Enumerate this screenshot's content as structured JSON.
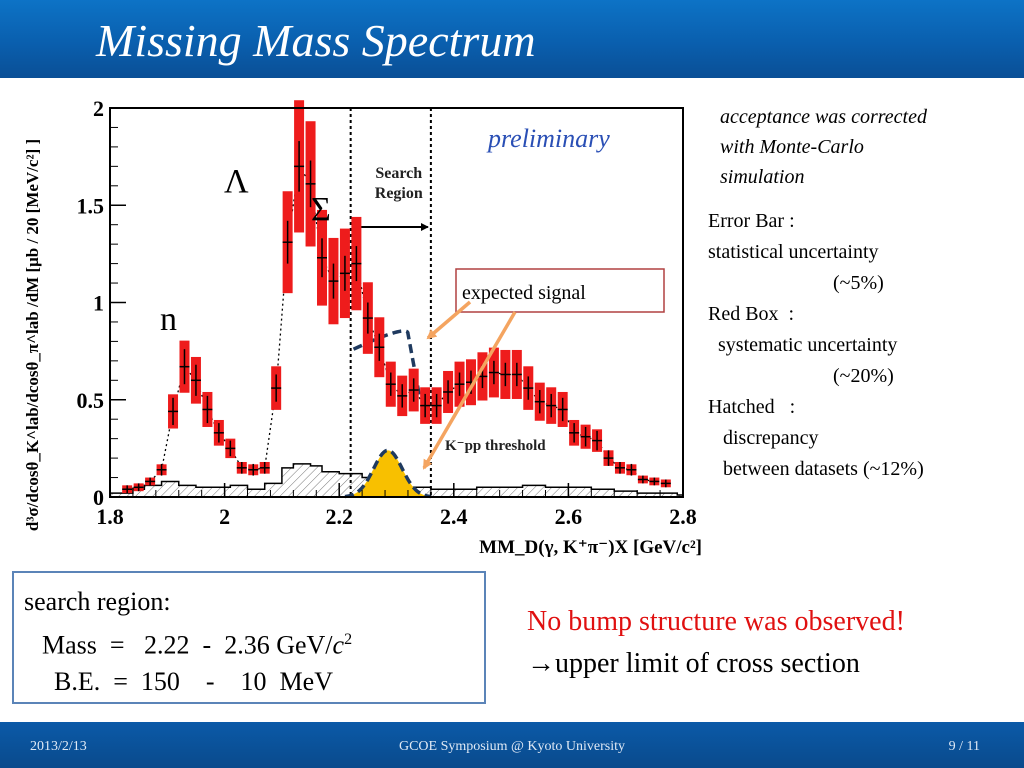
{
  "slide": {
    "title": "Missing Mass Spectrum",
    "footer": {
      "date": "2013/2/13",
      "event": "GCOE Symposium @ Kyoto University",
      "page": "9 / 11"
    }
  },
  "annotations": {
    "acceptance": "acceptance was corrected\nwith Monte-Carlo\nsimulation",
    "error_notes": "Error Bar :\nstatistical uncertainty\n                         (~5%)\nRed Box  :\n  systematic uncertainty\n                         (~20%)\nHatched   :\n   discrepancy\n   between datasets (~12%)"
  },
  "search_box": {
    "line1": "search region:",
    "mass_label": "Mass  =   2.22  -  2.36 GeV/",
    "mass_unit_c": "c",
    "mass_unit_exp": "2",
    "be_line": "B.E.  =  150    -    10  MeV"
  },
  "conclusion": {
    "red": "No bump structure was observed!",
    "arrow": "→",
    "text": "upper limit of cross section"
  },
  "chart_data": {
    "type": "scatter",
    "xlim": [
      1.8,
      2.8
    ],
    "ylim": [
      0,
      2
    ],
    "x_ticks": [
      "1.8",
      "2",
      "2.2",
      "2.4",
      "2.6",
      "2.8"
    ],
    "y_ticks": [
      "0",
      "0.5",
      "1",
      "1.5",
      "2"
    ],
    "xlabel": "MM_D(γ, K⁺π⁻)X [GeV/c²]",
    "ylabel": "d³σ/dcosθ_K^lab/dcosθ_π^lab /dM [μb / 20 [MeV/c²] ]",
    "labels": {
      "preliminary": "preliminary",
      "lambda": "Λ",
      "sigma": "Σ",
      "n": "n",
      "search": "Search",
      "region": "Region",
      "threshold": "K⁻pp threshold",
      "expected_signal": "expected signal"
    },
    "search_region": [
      2.22,
      2.36
    ],
    "colors": {
      "syst_box": "#ee1c1c",
      "signal_fill": "#f8c000",
      "signal_outline": "#1f3a5f",
      "arrow": "#f4a460"
    },
    "points": [
      [
        1.83,
        0.04,
        0.02
      ],
      [
        1.85,
        0.05,
        0.02
      ],
      [
        1.87,
        0.08,
        0.02
      ],
      [
        1.89,
        0.14,
        0.03
      ],
      [
        1.91,
        0.44,
        0.07
      ],
      [
        1.93,
        0.67,
        0.09
      ],
      [
        1.95,
        0.6,
        0.08
      ],
      [
        1.97,
        0.45,
        0.07
      ],
      [
        1.99,
        0.33,
        0.05
      ],
      [
        2.01,
        0.25,
        0.04
      ],
      [
        2.03,
        0.15,
        0.03
      ],
      [
        2.05,
        0.14,
        0.03
      ],
      [
        2.07,
        0.15,
        0.03
      ],
      [
        2.09,
        0.56,
        0.07
      ],
      [
        2.11,
        1.31,
        0.11
      ],
      [
        2.13,
        1.7,
        0.13
      ],
      [
        2.15,
        1.61,
        0.12
      ],
      [
        2.17,
        1.23,
        0.1
      ],
      [
        2.19,
        1.11,
        0.09
      ],
      [
        2.21,
        1.15,
        0.09
      ],
      [
        2.23,
        1.2,
        0.09
      ],
      [
        2.25,
        0.92,
        0.08
      ],
      [
        2.27,
        0.77,
        0.07
      ],
      [
        2.29,
        0.58,
        0.06
      ],
      [
        2.31,
        0.52,
        0.06
      ],
      [
        2.33,
        0.55,
        0.06
      ],
      [
        2.35,
        0.47,
        0.06
      ],
      [
        2.37,
        0.47,
        0.06
      ],
      [
        2.39,
        0.54,
        0.06
      ],
      [
        2.41,
        0.58,
        0.06
      ],
      [
        2.43,
        0.59,
        0.06
      ],
      [
        2.45,
        0.62,
        0.06
      ],
      [
        2.47,
        0.64,
        0.06
      ],
      [
        2.49,
        0.63,
        0.06
      ],
      [
        2.51,
        0.63,
        0.06
      ],
      [
        2.53,
        0.56,
        0.06
      ],
      [
        2.55,
        0.49,
        0.06
      ],
      [
        2.57,
        0.47,
        0.06
      ],
      [
        2.59,
        0.45,
        0.06
      ],
      [
        2.61,
        0.33,
        0.05
      ],
      [
        2.63,
        0.31,
        0.05
      ],
      [
        2.65,
        0.29,
        0.05
      ],
      [
        2.67,
        0.2,
        0.04
      ],
      [
        2.69,
        0.15,
        0.03
      ],
      [
        2.71,
        0.14,
        0.03
      ],
      [
        2.73,
        0.09,
        0.02
      ],
      [
        2.75,
        0.08,
        0.02
      ],
      [
        2.77,
        0.07,
        0.02
      ]
    ],
    "background": [
      [
        1.8,
        0.02
      ],
      [
        1.84,
        0.04
      ],
      [
        1.86,
        0.06
      ],
      [
        1.89,
        0.08
      ],
      [
        1.92,
        0.06
      ],
      [
        1.95,
        0.05
      ],
      [
        1.98,
        0.05
      ],
      [
        2.01,
        0.06
      ],
      [
        2.04,
        0.04
      ],
      [
        2.07,
        0.07
      ],
      [
        2.1,
        0.15
      ],
      [
        2.12,
        0.17
      ],
      [
        2.15,
        0.16
      ],
      [
        2.17,
        0.13
      ],
      [
        2.2,
        0.12
      ],
      [
        2.24,
        0.1
      ],
      [
        2.27,
        0.08
      ],
      [
        2.3,
        0.05
      ],
      [
        2.33,
        0.05
      ],
      [
        2.36,
        0.04
      ],
      [
        2.4,
        0.04
      ],
      [
        2.44,
        0.05
      ],
      [
        2.48,
        0.05
      ],
      [
        2.52,
        0.06
      ],
      [
        2.56,
        0.05
      ],
      [
        2.6,
        0.05
      ],
      [
        2.64,
        0.04
      ],
      [
        2.68,
        0.03
      ],
      [
        2.72,
        0.02
      ],
      [
        2.76,
        0.02
      ],
      [
        2.79,
        0.01
      ]
    ],
    "expected_signal": {
      "center": 2.285,
      "sigma": 0.025,
      "peak": 0.24
    },
    "upper_limit_curve": [
      [
        2.225,
        0.76
      ],
      [
        2.32,
        0.84
      ],
      [
        2.34,
        0.52
      ]
    ]
  }
}
